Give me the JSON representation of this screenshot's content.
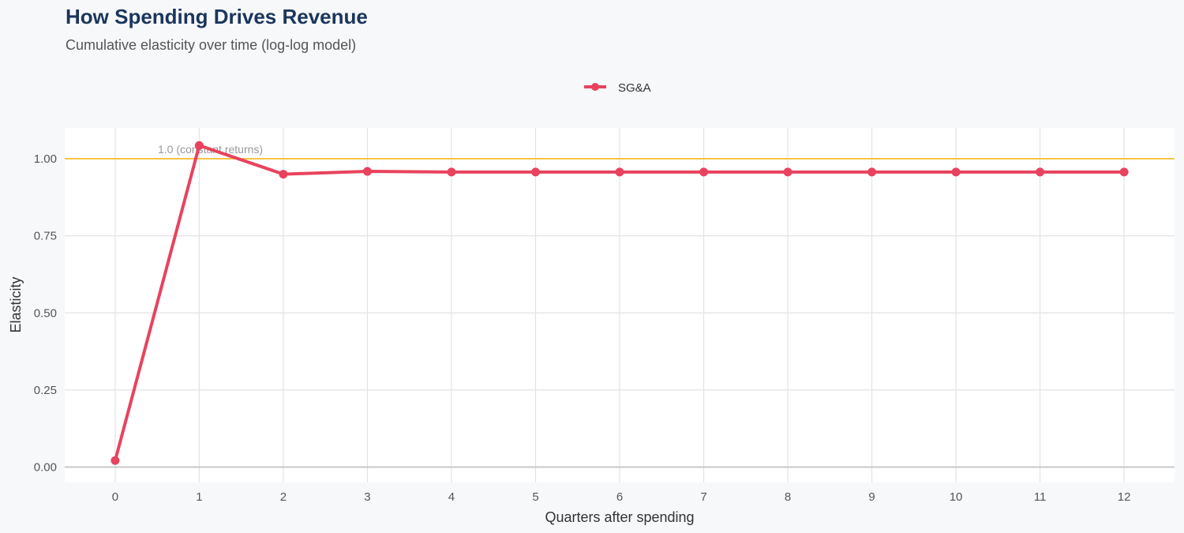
{
  "title": "How Spending Drives Revenue",
  "subtitle": "Cumulative elasticity over time (log-log model)",
  "chart_data": {
    "type": "line",
    "title": "How Spending Drives Revenue",
    "subtitle": "Cumulative elasticity over time (log-log model)",
    "xlabel": "Quarters after spending",
    "ylabel": "Elasticity",
    "x": [
      0,
      1,
      2,
      3,
      4,
      5,
      6,
      7,
      8,
      9,
      10,
      11,
      12
    ],
    "series": [
      {
        "name": "SG&A",
        "color": "#e8435e",
        "values": [
          0.021,
          1.043,
          0.95,
          0.959,
          0.957,
          0.957,
          0.957,
          0.957,
          0.957,
          0.957,
          0.957,
          0.957,
          0.957
        ]
      }
    ],
    "xlim": [
      -0.6,
      12.6
    ],
    "ylim": [
      -0.05,
      1.1
    ],
    "xticks": [
      "0",
      "1",
      "2",
      "3",
      "4",
      "5",
      "6",
      "7",
      "8",
      "9",
      "10",
      "11",
      "12"
    ],
    "yticks": [
      "0.00",
      "0.25",
      "0.50",
      "0.75",
      "1.00"
    ],
    "ytick_values": [
      0,
      0.25,
      0.5,
      0.75,
      1.0
    ],
    "reference_line": {
      "y": 1.0,
      "label": "1.0 (constant returns)",
      "color": "#f7c548"
    },
    "legend_position": "top",
    "grid": true
  }
}
